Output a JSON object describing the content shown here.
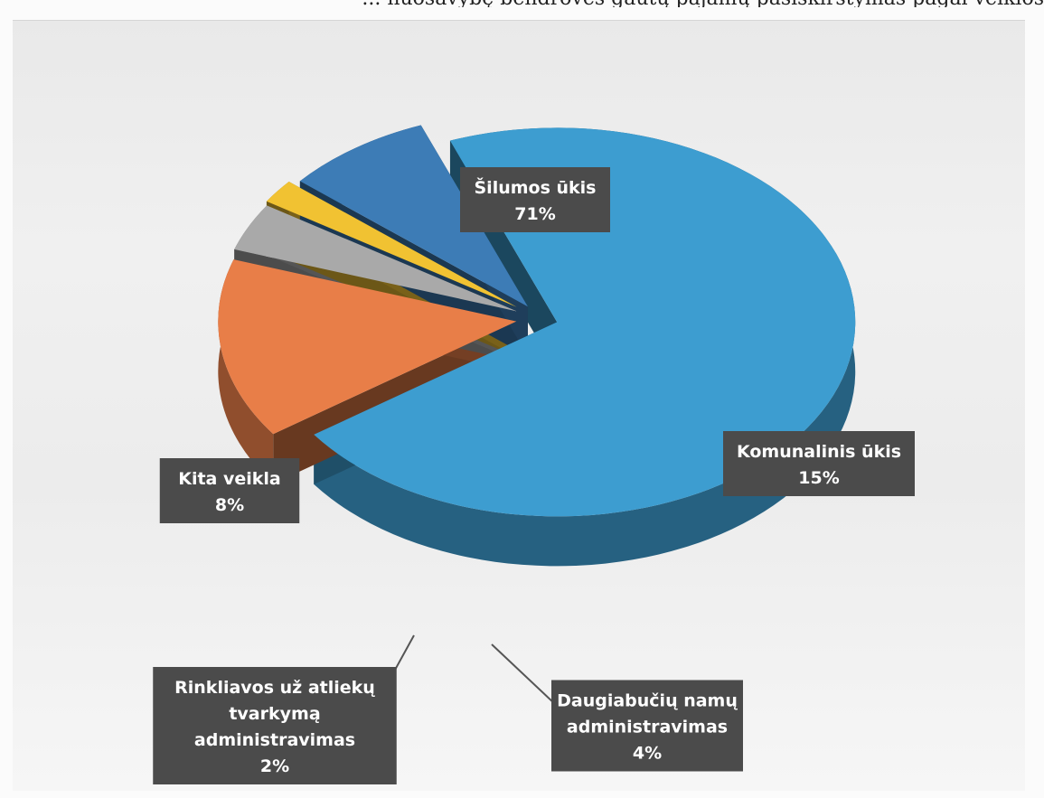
{
  "header_fragment": "... nuosavybę bendrovės gautų pajamų pasiskirstymas pagal veiklos",
  "chart_data": {
    "type": "pie",
    "title": "",
    "labels_style": "callout boxes",
    "slices": [
      {
        "label": "Šilumos ūkis",
        "value": 71,
        "value_label": "71%",
        "color": "#3d9dd0"
      },
      {
        "label": "Komunalinis ūkis",
        "value": 15,
        "value_label": "15%",
        "color": "#e87e48"
      },
      {
        "label": "Daugiabučių namų administravimas",
        "value": 4,
        "value_label": "4%",
        "color": "#a9a9a9"
      },
      {
        "label": "Rinkliavos už atliekų tvarkymą administravimas",
        "value": 2,
        "value_label": "2%",
        "color": "#f1c232"
      },
      {
        "label": "Kita veikla",
        "value": 8,
        "value_label": "8%",
        "color": "#3d7cb6"
      }
    ]
  }
}
